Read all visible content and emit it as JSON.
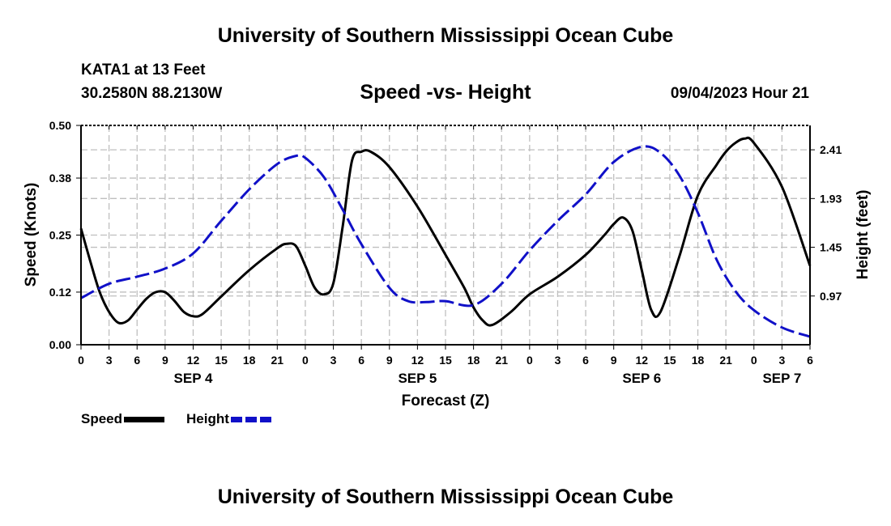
{
  "header": {
    "main_title": "University of Southern Mississippi Ocean Cube",
    "station_name": "KATA1 at 13 Feet",
    "station_coords": "30.2580N  88.2130W",
    "chart_title": "Speed -vs- Height",
    "date_label": "09/04/2023 Hour 21"
  },
  "footer": {
    "title": "University of Southern Mississippi Ocean Cube"
  },
  "legend": {
    "speed_label": "Speed",
    "height_label": "Height"
  },
  "colors": {
    "speed": "#000000",
    "height": "#1010c8",
    "grid": "#bfbfbf"
  },
  "chart_data": {
    "type": "line",
    "title": "Speed -vs- Height",
    "xlabel": "Forecast (Z)",
    "ylabel_left": "Speed (Knots)",
    "ylabel_right": "Height (feet)",
    "x_range_hours": [
      0,
      78
    ],
    "x_tick_step_hours": 3,
    "x_tick_labels": [
      "0",
      "3",
      "6",
      "9",
      "12",
      "15",
      "18",
      "21",
      "0",
      "3",
      "6",
      "9",
      "12",
      "15",
      "18",
      "21",
      "0",
      "3",
      "6",
      "9",
      "12",
      "15",
      "18",
      "21",
      "0",
      "3",
      "6"
    ],
    "day_labels": [
      {
        "label": "SEP 4",
        "hour": 12
      },
      {
        "label": "SEP 5",
        "hour": 36
      },
      {
        "label": "SEP 6",
        "hour": 60
      },
      {
        "label": "SEP 7",
        "hour": 75
      }
    ],
    "ylim_left": [
      0,
      0.5
    ],
    "yticks_left": [
      "0.00",
      "0.12",
      "0.25",
      "0.38",
      "0.50"
    ],
    "ylim_right": [
      0.49,
      2.65
    ],
    "yticks_right": [
      "0.97",
      "1.45",
      "1.93",
      "2.41"
    ],
    "grid": true,
    "series": [
      {
        "name": "Speed",
        "axis": "left",
        "style": "solid",
        "x": [
          0,
          1,
          2,
          3,
          4,
          5,
          6,
          7,
          8,
          9,
          10,
          11,
          12,
          13,
          15,
          18,
          21,
          22,
          23,
          24,
          25,
          26,
          27,
          28,
          29,
          30,
          31,
          33,
          36,
          39,
          41,
          42,
          43,
          44,
          46,
          48,
          51,
          54,
          56,
          57,
          58,
          59,
          60,
          61,
          62,
          64,
          66,
          68,
          69,
          70,
          71,
          72,
          75,
          78
        ],
        "values": [
          0.265,
          0.19,
          0.12,
          0.075,
          0.05,
          0.055,
          0.08,
          0.105,
          0.12,
          0.12,
          0.1,
          0.075,
          0.065,
          0.07,
          0.11,
          0.17,
          0.22,
          0.23,
          0.225,
          0.18,
          0.13,
          0.115,
          0.14,
          0.27,
          0.42,
          0.44,
          0.44,
          0.405,
          0.315,
          0.205,
          0.13,
          0.085,
          0.055,
          0.045,
          0.075,
          0.115,
          0.155,
          0.205,
          0.25,
          0.275,
          0.29,
          0.26,
          0.17,
          0.08,
          0.075,
          0.2,
          0.34,
          0.41,
          0.44,
          0.46,
          0.47,
          0.46,
          0.36,
          0.18
        ]
      },
      {
        "name": "Height",
        "axis": "right",
        "style": "dashed",
        "x": [
          0,
          3,
          6,
          9,
          12,
          15,
          18,
          21,
          23,
          24,
          26,
          28,
          30,
          33,
          35,
          37,
          39,
          42,
          45,
          48,
          51,
          54,
          57,
          60,
          62,
          64,
          66,
          68,
          70,
          72,
          75,
          78
        ],
        "values": [
          0.95,
          1.09,
          1.16,
          1.24,
          1.39,
          1.71,
          2.02,
          2.27,
          2.35,
          2.33,
          2.14,
          1.82,
          1.48,
          1.05,
          0.92,
          0.91,
          0.92,
          0.88,
          1.09,
          1.42,
          1.71,
          1.97,
          2.29,
          2.44,
          2.38,
          2.16,
          1.79,
          1.33,
          1.02,
          0.83,
          0.66,
          0.57
        ]
      }
    ]
  }
}
